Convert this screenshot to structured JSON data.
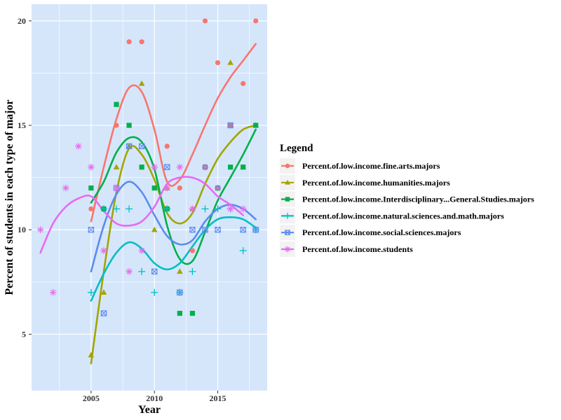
{
  "chart_data": {
    "type": "scatter",
    "xlabel": "Year",
    "ylabel": "Percent of students in each type of major",
    "xlim": [
      2000.3,
      2018.9
    ],
    "ylim": [
      2.3,
      20.8
    ],
    "x_ticks": [
      2005,
      2010,
      2015
    ],
    "y_ticks": [
      5,
      10,
      15,
      20
    ],
    "x_minor_ticks": [
      2002.5,
      2007.5,
      2012.5,
      2017.5
    ],
    "y_minor_ticks": [
      7.5,
      12.5,
      17.5
    ],
    "grid": true,
    "panel_background": "#d5e6fb",
    "legend": {
      "title": "Legend",
      "placement": "right"
    },
    "smoothing": "loess",
    "series": [
      {
        "name": "Percent.of.low.income.fine.arts.majors",
        "color": "#f8766d",
        "shape": "circle",
        "points": [
          [
            2005,
            11
          ],
          [
            2006,
            11
          ],
          [
            2007,
            15
          ],
          [
            2008,
            19
          ],
          [
            2009,
            19
          ],
          [
            2010,
            12
          ],
          [
            2011,
            14
          ],
          [
            2012,
            12
          ],
          [
            2013,
            9
          ],
          [
            2014,
            20
          ],
          [
            2015,
            18
          ],
          [
            2016,
            15
          ],
          [
            2017,
            17
          ],
          [
            2018,
            20
          ]
        ],
        "smooth": [
          [
            2005,
            10.4
          ],
          [
            2006,
            13.0
          ],
          [
            2007,
            15.3
          ],
          [
            2008,
            16.8
          ],
          [
            2009,
            16.6
          ],
          [
            2010,
            14.8
          ],
          [
            2011,
            12.3
          ],
          [
            2012,
            12.4
          ],
          [
            2013,
            13.6
          ],
          [
            2014,
            15.0
          ],
          [
            2015,
            16.3
          ],
          [
            2016,
            17.3
          ],
          [
            2017,
            18.1
          ],
          [
            2018,
            18.9
          ]
        ]
      },
      {
        "name": "Percent.of.low.income.humanities.majors",
        "color": "#a3a500",
        "shape": "triangle",
        "points": [
          [
            2005,
            4
          ],
          [
            2006,
            7
          ],
          [
            2007,
            13
          ],
          [
            2008,
            14
          ],
          [
            2009,
            17
          ],
          [
            2010,
            10
          ],
          [
            2011,
            12
          ],
          [
            2012,
            8
          ],
          [
            2013,
            11
          ],
          [
            2014,
            13
          ],
          [
            2015,
            12
          ],
          [
            2016,
            18
          ],
          [
            2017,
            13
          ],
          [
            2018,
            15
          ]
        ],
        "smooth": [
          [
            2005,
            3.6
          ],
          [
            2006,
            8.0
          ],
          [
            2007,
            11.8
          ],
          [
            2008,
            13.9
          ],
          [
            2009,
            13.6
          ],
          [
            2010,
            12.4
          ],
          [
            2011,
            10.8
          ],
          [
            2012,
            10.3
          ],
          [
            2013,
            10.8
          ],
          [
            2014,
            12.2
          ],
          [
            2015,
            13.4
          ],
          [
            2016,
            14.2
          ],
          [
            2017,
            14.8
          ],
          [
            2018,
            15.0
          ]
        ]
      },
      {
        "name": "Percent.of.low.income.Interdisciplinary...General.Studies.majors",
        "color": "#00b04a",
        "shape": "square",
        "points": [
          [
            2005,
            12
          ],
          [
            2006,
            11
          ],
          [
            2007,
            16
          ],
          [
            2008,
            15
          ],
          [
            2009,
            13
          ],
          [
            2010,
            12
          ],
          [
            2011,
            11
          ],
          [
            2012,
            6
          ],
          [
            2013,
            6
          ],
          [
            2014,
            13
          ],
          [
            2015,
            12
          ],
          [
            2016,
            13
          ],
          [
            2017,
            13
          ],
          [
            2018,
            15
          ]
        ],
        "smooth": [
          [
            2005,
            11.3
          ],
          [
            2006,
            12.3
          ],
          [
            2007,
            13.7
          ],
          [
            2008,
            14.4
          ],
          [
            2009,
            14.2
          ],
          [
            2010,
            12.9
          ],
          [
            2011,
            10.2
          ],
          [
            2012,
            8.6
          ],
          [
            2013,
            8.5
          ],
          [
            2014,
            9.9
          ],
          [
            2015,
            11.4
          ],
          [
            2016,
            12.5
          ],
          [
            2017,
            13.6
          ],
          [
            2018,
            14.8
          ]
        ]
      },
      {
        "name": "Percent.of.low.income.natural.sciences.and.math.majors",
        "color": "#00bfc4",
        "shape": "plus",
        "points": [
          [
            2005,
            7
          ],
          [
            2006,
            11
          ],
          [
            2007,
            11
          ],
          [
            2008,
            11
          ],
          [
            2009,
            8
          ],
          [
            2010,
            7
          ],
          [
            2011,
            11
          ],
          [
            2012,
            7
          ],
          [
            2013,
            8
          ],
          [
            2014,
            11
          ],
          [
            2015,
            11
          ],
          [
            2016,
            11
          ],
          [
            2017,
            9
          ],
          [
            2018,
            10
          ]
        ],
        "smooth": [
          [
            2005,
            6.6
          ],
          [
            2006,
            7.9
          ],
          [
            2007,
            8.9
          ],
          [
            2008,
            9.4
          ],
          [
            2009,
            9.1
          ],
          [
            2010,
            8.4
          ],
          [
            2011,
            8.1
          ],
          [
            2012,
            8.4
          ],
          [
            2013,
            9.2
          ],
          [
            2014,
            10.0
          ],
          [
            2015,
            10.5
          ],
          [
            2016,
            10.6
          ],
          [
            2017,
            10.5
          ],
          [
            2018,
            10.1
          ]
        ]
      },
      {
        "name": "Percent.of.low.income.social.sciences.majors",
        "color": "#5c8bf0",
        "shape": "square-cross",
        "points": [
          [
            2005,
            10
          ],
          [
            2006,
            6
          ],
          [
            2007,
            12
          ],
          [
            2008,
            14
          ],
          [
            2009,
            14
          ],
          [
            2010,
            8
          ],
          [
            2011,
            13
          ],
          [
            2012,
            7
          ],
          [
            2013,
            10
          ],
          [
            2014,
            10
          ],
          [
            2015,
            10
          ],
          [
            2016,
            15
          ],
          [
            2017,
            10
          ],
          [
            2018,
            10
          ]
        ],
        "smooth": [
          [
            2005,
            8.0
          ],
          [
            2006,
            10.2
          ],
          [
            2007,
            11.7
          ],
          [
            2008,
            12.3
          ],
          [
            2009,
            11.8
          ],
          [
            2010,
            10.7
          ],
          [
            2011,
            9.7
          ],
          [
            2012,
            9.3
          ],
          [
            2013,
            9.5
          ],
          [
            2014,
            10.4
          ],
          [
            2015,
            11.0
          ],
          [
            2016,
            11.2
          ],
          [
            2017,
            11.0
          ],
          [
            2018,
            10.5
          ]
        ]
      },
      {
        "name": "Percent.of.low.income.students",
        "color": "#e76bf3",
        "shape": "asterisk",
        "points": [
          [
            2001,
            10
          ],
          [
            2002,
            7
          ],
          [
            2003,
            12
          ],
          [
            2004,
            14
          ],
          [
            2005,
            13
          ],
          [
            2006,
            9
          ],
          [
            2007,
            12
          ],
          [
            2008,
            8
          ],
          [
            2009,
            9
          ],
          [
            2010,
            13
          ],
          [
            2011,
            12
          ],
          [
            2012,
            13
          ],
          [
            2013,
            11
          ],
          [
            2014,
            13
          ],
          [
            2015,
            12
          ],
          [
            2016,
            11
          ],
          [
            2017,
            11
          ]
        ],
        "smooth": [
          [
            2001,
            8.9
          ],
          [
            2002,
            10.3
          ],
          [
            2003,
            11.1
          ],
          [
            2004,
            11.5
          ],
          [
            2005,
            11.6
          ],
          [
            2006,
            10.9
          ],
          [
            2007,
            10.3
          ],
          [
            2008,
            10.2
          ],
          [
            2009,
            10.4
          ],
          [
            2010,
            11.1
          ],
          [
            2011,
            12.2
          ],
          [
            2012,
            12.5
          ],
          [
            2013,
            12.5
          ],
          [
            2014,
            12.2
          ],
          [
            2015,
            11.6
          ],
          [
            2016,
            11.2
          ],
          [
            2017,
            10.7
          ]
        ]
      }
    ]
  }
}
